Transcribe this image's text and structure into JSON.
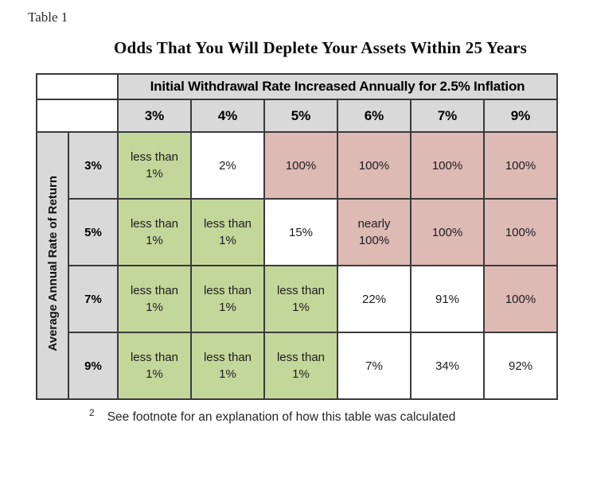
{
  "document": {
    "table_label": "Table 1",
    "title": "Odds That You Will Deplete Your Assets Within 25 Years",
    "footnote": {
      "marker": "2",
      "text": "See footnote for an explanation of how this table was calculated"
    }
  },
  "chart_data": {
    "type": "table",
    "title": "Odds That You Will Deplete Your Assets Within 25 Years",
    "column_group_header": "Initial Withdrawal Rate Increased Annually for 2.5% Inflation",
    "row_group_header": "Average Annual Rate of Return",
    "columns": [
      "3%",
      "4%",
      "5%",
      "6%",
      "7%",
      "9%"
    ],
    "rows": [
      {
        "label": "3%",
        "cells": [
          {
            "text": "less than\n1%",
            "tone": "green"
          },
          {
            "text": "2%",
            "tone": "white"
          },
          {
            "text": "100%",
            "tone": "pink"
          },
          {
            "text": "100%",
            "tone": "pink"
          },
          {
            "text": "100%",
            "tone": "pink"
          },
          {
            "text": "100%",
            "tone": "pink"
          }
        ]
      },
      {
        "label": "5%",
        "cells": [
          {
            "text": "less than\n1%",
            "tone": "green"
          },
          {
            "text": "less than\n1%",
            "tone": "green"
          },
          {
            "text": "15%",
            "tone": "white"
          },
          {
            "text": "nearly\n100%",
            "tone": "pink"
          },
          {
            "text": "100%",
            "tone": "pink"
          },
          {
            "text": "100%",
            "tone": "pink"
          }
        ]
      },
      {
        "label": "7%",
        "cells": [
          {
            "text": "less than\n1%",
            "tone": "green"
          },
          {
            "text": "less than\n1%",
            "tone": "green"
          },
          {
            "text": "less than\n1%",
            "tone": "green"
          },
          {
            "text": "22%",
            "tone": "white"
          },
          {
            "text": "91%",
            "tone": "white"
          },
          {
            "text": "100%",
            "tone": "pink"
          }
        ]
      },
      {
        "label": "9%",
        "cells": [
          {
            "text": "less than\n1%",
            "tone": "green"
          },
          {
            "text": "less than\n1%",
            "tone": "green"
          },
          {
            "text": "less than\n1%",
            "tone": "green"
          },
          {
            "text": "7%",
            "tone": "white"
          },
          {
            "text": "34%",
            "tone": "white"
          },
          {
            "text": "92%",
            "tone": "white"
          }
        ]
      }
    ]
  },
  "colors": {
    "header_gray": "#d9d9d9",
    "green": "#c4d79b",
    "pink": "#debab4",
    "border": "#3a3a3a"
  }
}
